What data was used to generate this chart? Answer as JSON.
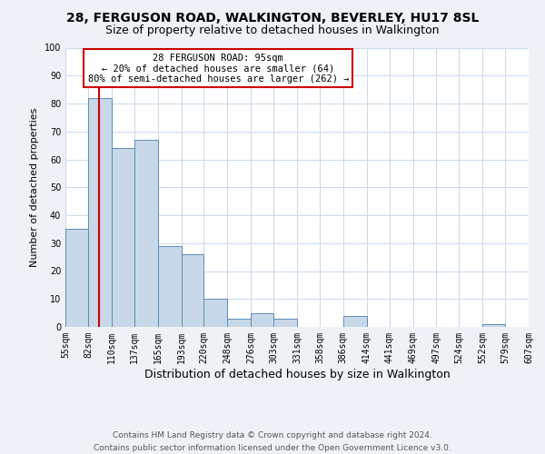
{
  "title": "28, FERGUSON ROAD, WALKINGTON, BEVERLEY, HU17 8SL",
  "subtitle": "Size of property relative to detached houses in Walkington",
  "xlabel": "Distribution of detached houses by size in Walkington",
  "ylabel": "Number of detached properties",
  "bin_labels": [
    "55sqm",
    "82sqm",
    "110sqm",
    "137sqm",
    "165sqm",
    "193sqm",
    "220sqm",
    "248sqm",
    "276sqm",
    "303sqm",
    "331sqm",
    "358sqm",
    "386sqm",
    "414sqm",
    "441sqm",
    "469sqm",
    "497sqm",
    "524sqm",
    "552sqm",
    "579sqm",
    "607sqm"
  ],
  "bin_edges": [
    55,
    82,
    110,
    137,
    165,
    193,
    220,
    248,
    276,
    303,
    331,
    358,
    386,
    414,
    441,
    469,
    497,
    524,
    552,
    579,
    607
  ],
  "bar_heights": [
    35,
    82,
    64,
    67,
    29,
    26,
    10,
    3,
    5,
    3,
    0,
    0,
    4,
    0,
    0,
    0,
    0,
    0,
    1,
    0,
    0
  ],
  "bar_color": "#c8d8e8",
  "bar_edge_color": "#5b8db8",
  "property_line_x": 95,
  "ylim": [
    0,
    100
  ],
  "yticks": [
    0,
    10,
    20,
    30,
    40,
    50,
    60,
    70,
    80,
    90,
    100
  ],
  "annotation_title": "28 FERGUSON ROAD: 95sqm",
  "annotation_line1": "← 20% of detached houses are smaller (64)",
  "annotation_line2": "80% of semi-detached houses are larger (262) →",
  "annotation_box_color": "#cc0000",
  "footer_line1": "Contains HM Land Registry data © Crown copyright and database right 2024.",
  "footer_line2": "Contains public sector information licensed under the Open Government Licence v3.0.",
  "bg_color": "#eef2f7",
  "plot_bg_color": "#ffffff",
  "grid_color": "#c8d8ea",
  "title_fontsize": 10,
  "subtitle_fontsize": 9,
  "xlabel_fontsize": 9,
  "ylabel_fontsize": 8,
  "tick_fontsize": 7,
  "footer_fontsize": 6.5,
  "annotation_fontsize": 7.5
}
